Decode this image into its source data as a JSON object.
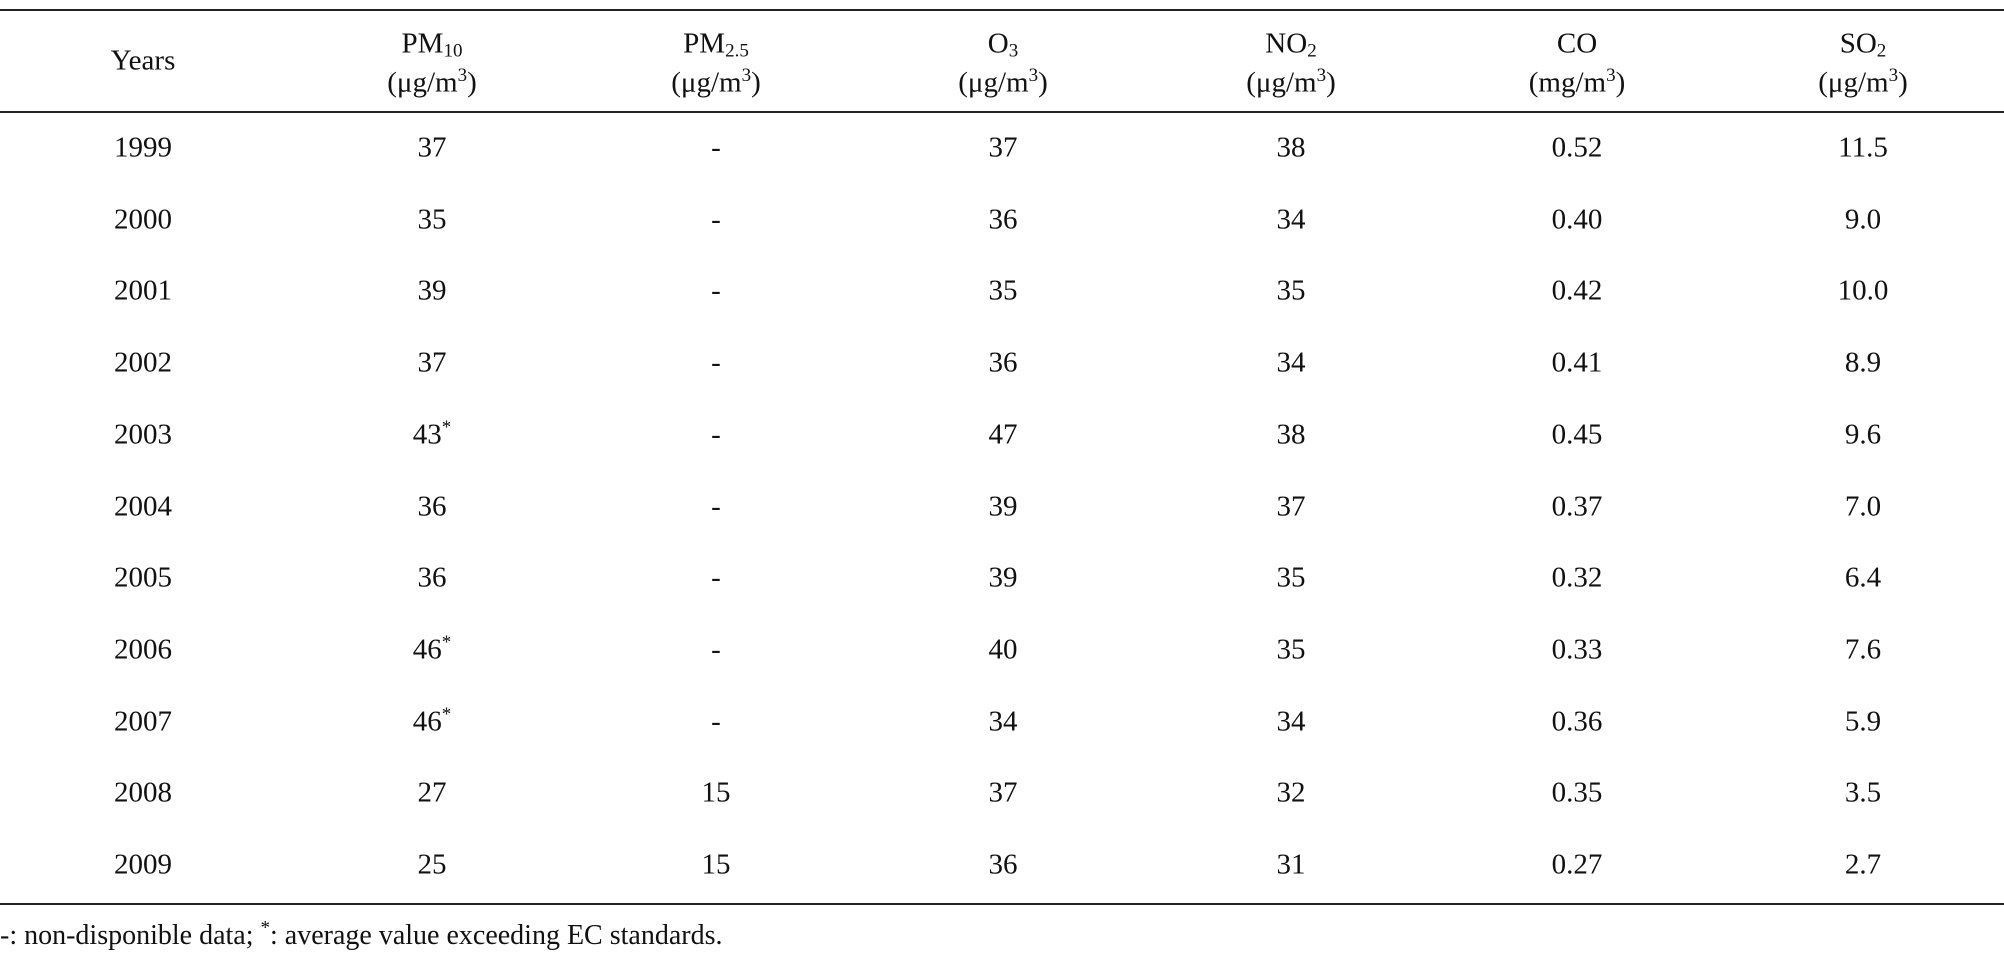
{
  "table": {
    "header": [
      {
        "name": "Years"
      },
      {
        "name": "PM",
        "sub": "10",
        "unit": {
          "pre": "(μg/m",
          "sup": "3",
          "post": ")"
        }
      },
      {
        "name": "PM",
        "sub": "2.5",
        "unit": {
          "pre": "(μg/m",
          "sup": "3",
          "post": ")"
        }
      },
      {
        "name": "O",
        "sub": "3",
        "unit": {
          "pre": "(μg/m",
          "sup": "3",
          "post": ")"
        }
      },
      {
        "name": "NO",
        "sub": "2",
        "unit": {
          "pre": "(μg/m",
          "sup": "3",
          "post": ")"
        }
      },
      {
        "name": "CO",
        "unit": {
          "pre": "(mg/m",
          "sup": "3",
          "post": ")"
        }
      },
      {
        "name": "SO",
        "sub": "2",
        "unit": {
          "pre": "(μg/m",
          "sup": "3",
          "post": ")"
        }
      }
    ],
    "rows": [
      [
        "1999",
        "37",
        "-",
        "37",
        "38",
        "0.52",
        "11.5"
      ],
      [
        "2000",
        "35",
        "-",
        "36",
        "34",
        "0.40",
        "9.0"
      ],
      [
        "2001",
        "39",
        "-",
        "35",
        "35",
        "0.42",
        "10.0"
      ],
      [
        "2002",
        "37",
        "-",
        "36",
        "34",
        "0.41",
        "8.9"
      ],
      [
        "2003",
        {
          "text": "43",
          "sup": "*"
        },
        "-",
        "47",
        "38",
        "0.45",
        "9.6"
      ],
      [
        "2004",
        "36",
        "-",
        "39",
        "37",
        "0.37",
        "7.0"
      ],
      [
        "2005",
        "36",
        "-",
        "39",
        "35",
        "0.32",
        "6.4"
      ],
      [
        "2006",
        {
          "text": "46",
          "sup": "*"
        },
        "-",
        "40",
        "35",
        "0.33",
        "7.6"
      ],
      [
        "2007",
        {
          "text": "46",
          "sup": "*"
        },
        "-",
        "34",
        "34",
        "0.36",
        "5.9"
      ],
      [
        "2008",
        "27",
        "15",
        "37",
        "32",
        "0.35",
        "3.5"
      ],
      [
        "2009",
        "25",
        "15",
        "36",
        "31",
        "0.27",
        "2.7"
      ]
    ],
    "footnote": {
      "pre": "-: non-disponible data; ",
      "sup": "*",
      "post": ": average value exceeding EC standards."
    }
  }
}
